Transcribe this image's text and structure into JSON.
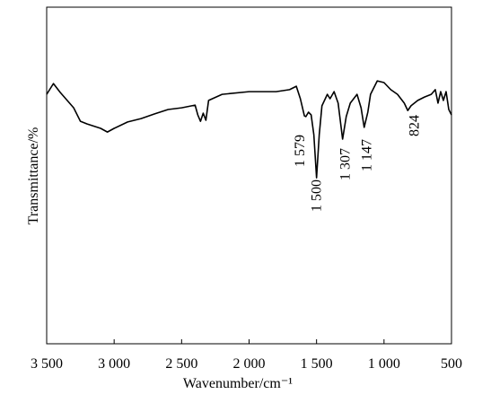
{
  "chart_data": {
    "type": "line",
    "x_label": "Wavenumber/cm⁻¹",
    "y_label": "Transmittance/%",
    "x": [
      3500,
      3450,
      3400,
      3300,
      3250,
      3200,
      3100,
      3050,
      3000,
      2900,
      2800,
      2700,
      2600,
      2500,
      2400,
      2380,
      2360,
      2340,
      2320,
      2300,
      2200,
      2000,
      1800,
      1700,
      1650,
      1620,
      1590,
      1579,
      1560,
      1540,
      1520,
      1500,
      1480,
      1460,
      1420,
      1400,
      1370,
      1340,
      1307,
      1280,
      1250,
      1200,
      1170,
      1147,
      1120,
      1100,
      1050,
      1000,
      950,
      900,
      850,
      824,
      800,
      750,
      700,
      650,
      620,
      600,
      580,
      560,
      540,
      520,
      500
    ],
    "values": [
      74.1,
      77.3,
      74.7,
      70.1,
      66.1,
      65.3,
      64,
      62.9,
      64,
      65.9,
      66.9,
      68.3,
      69.6,
      70.1,
      70.9,
      68,
      66.1,
      68.5,
      66.4,
      72.3,
      74.1,
      74.9,
      74.9,
      75.5,
      76.5,
      72.8,
      67.7,
      67.5,
      68.8,
      68,
      62.1,
      49.3,
      62.1,
      70.7,
      74.1,
      72.8,
      74.9,
      71.5,
      60.8,
      67.5,
      71.5,
      74.1,
      70.1,
      64.3,
      68.8,
      74.1,
      78.1,
      77.6,
      75.5,
      74.1,
      71.5,
      69.3,
      70.7,
      72.3,
      73.3,
      74.1,
      75.5,
      71.5,
      74.9,
      72.3,
      74.9,
      69.6,
      68
    ],
    "color": "#000000",
    "xlim": [
      3500,
      500
    ],
    "ylim": [
      0,
      100
    ],
    "xticks": [
      {
        "value": 3500,
        "label": "3 500"
      },
      {
        "value": 3000,
        "label": "3 000"
      },
      {
        "value": 2500,
        "label": "2 500"
      },
      {
        "value": 2000,
        "label": "2 000"
      },
      {
        "value": 1500,
        "label": "1 500"
      },
      {
        "value": 1000,
        "label": "1 000"
      },
      500
    ],
    "annotations": [
      {
        "text": "1 579",
        "x": 1579
      },
      {
        "text": "1 500",
        "x": 1500
      },
      {
        "text": "1 307",
        "x": 1307
      },
      {
        "text": "1 147",
        "x": 1147
      },
      {
        "text": "824",
        "x": 824
      }
    ]
  }
}
